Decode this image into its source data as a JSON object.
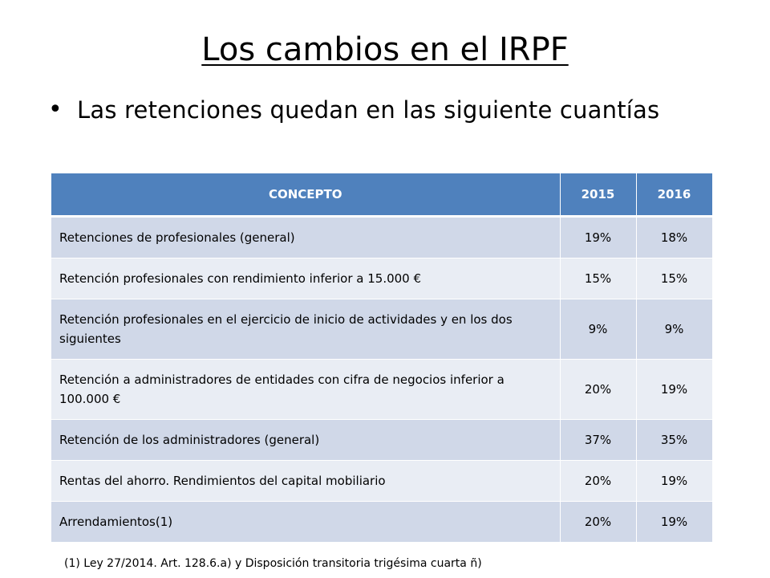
{
  "slide": {
    "title": "Los cambios en el IRPF",
    "bullet": "Las retenciones quedan en las siguiente cuantías",
    "footnote": "(1) Ley 27/2014. Art. 128.6.a) y Disposición transitoria trigésima cuarta ñ)"
  },
  "table": {
    "headers": [
      "CONCEPTO",
      "2015",
      "2016"
    ],
    "rows": [
      [
        "Retenciones de profesionales (general)",
        "19%",
        "18%"
      ],
      [
        "Retención profesionales con rendimiento inferior a 15.000 €",
        "15%",
        "15%"
      ],
      [
        "Retención profesionales en el ejercicio de inicio de actividades y en los dos siguientes",
        "9%",
        "9%"
      ],
      [
        "Retención a administradores de entidades con cifra de negocios inferior a 100.000 €",
        "20%",
        "19%"
      ],
      [
        "Retención de los administradores (general)",
        "37%",
        "35%"
      ],
      [
        "Rentas del ahorro. Rendimientos del capital mobiliario",
        "20%",
        "19%"
      ],
      [
        "Arrendamientos(1)",
        "20%",
        "19%"
      ]
    ]
  },
  "colors": {
    "header_bg": "#4f81bd",
    "row_odd_bg": "#d0d8e8",
    "row_even_bg": "#e9edf4"
  }
}
